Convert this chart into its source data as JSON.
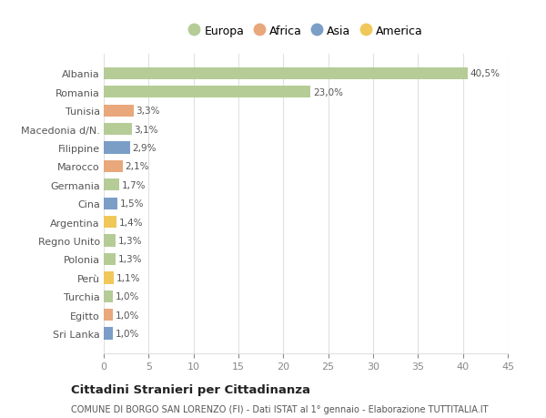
{
  "categories": [
    "Albania",
    "Romania",
    "Tunisia",
    "Macedonia d/N.",
    "Filippine",
    "Marocco",
    "Germania",
    "Cina",
    "Argentina",
    "Regno Unito",
    "Polonia",
    "Perù",
    "Turchia",
    "Egitto",
    "Sri Lanka"
  ],
  "values": [
    40.5,
    23.0,
    3.3,
    3.1,
    2.9,
    2.1,
    1.7,
    1.5,
    1.4,
    1.3,
    1.3,
    1.1,
    1.0,
    1.0,
    1.0
  ],
  "labels": [
    "40,5%",
    "23,0%",
    "3,3%",
    "3,1%",
    "2,9%",
    "2,1%",
    "1,7%",
    "1,5%",
    "1,4%",
    "1,3%",
    "1,3%",
    "1,1%",
    "1,0%",
    "1,0%",
    "1,0%"
  ],
  "colors": [
    "#b5cc96",
    "#b5cc96",
    "#e8a87c",
    "#b5cc96",
    "#7b9ec7",
    "#e8a87c",
    "#b5cc96",
    "#7b9ec7",
    "#f0c85a",
    "#b5cc96",
    "#b5cc96",
    "#f0c85a",
    "#b5cc96",
    "#e8a87c",
    "#7b9ec7"
  ],
  "legend_labels": [
    "Europa",
    "Africa",
    "Asia",
    "America"
  ],
  "legend_colors": [
    "#b5cc96",
    "#e8a87c",
    "#7b9ec7",
    "#f0c85a"
  ],
  "xlim": [
    0,
    45
  ],
  "xticks": [
    0,
    5,
    10,
    15,
    20,
    25,
    30,
    35,
    40,
    45
  ],
  "title": "Cittadini Stranieri per Cittadinanza",
  "subtitle": "COMUNE DI BORGO SAN LORENZO (FI) - Dati ISTAT al 1° gennaio - Elaborazione TUTTITALIA.IT",
  "background_color": "#ffffff",
  "grid_color": "#e0e0e0",
  "label_color": "#555555",
  "tick_color": "#888888"
}
